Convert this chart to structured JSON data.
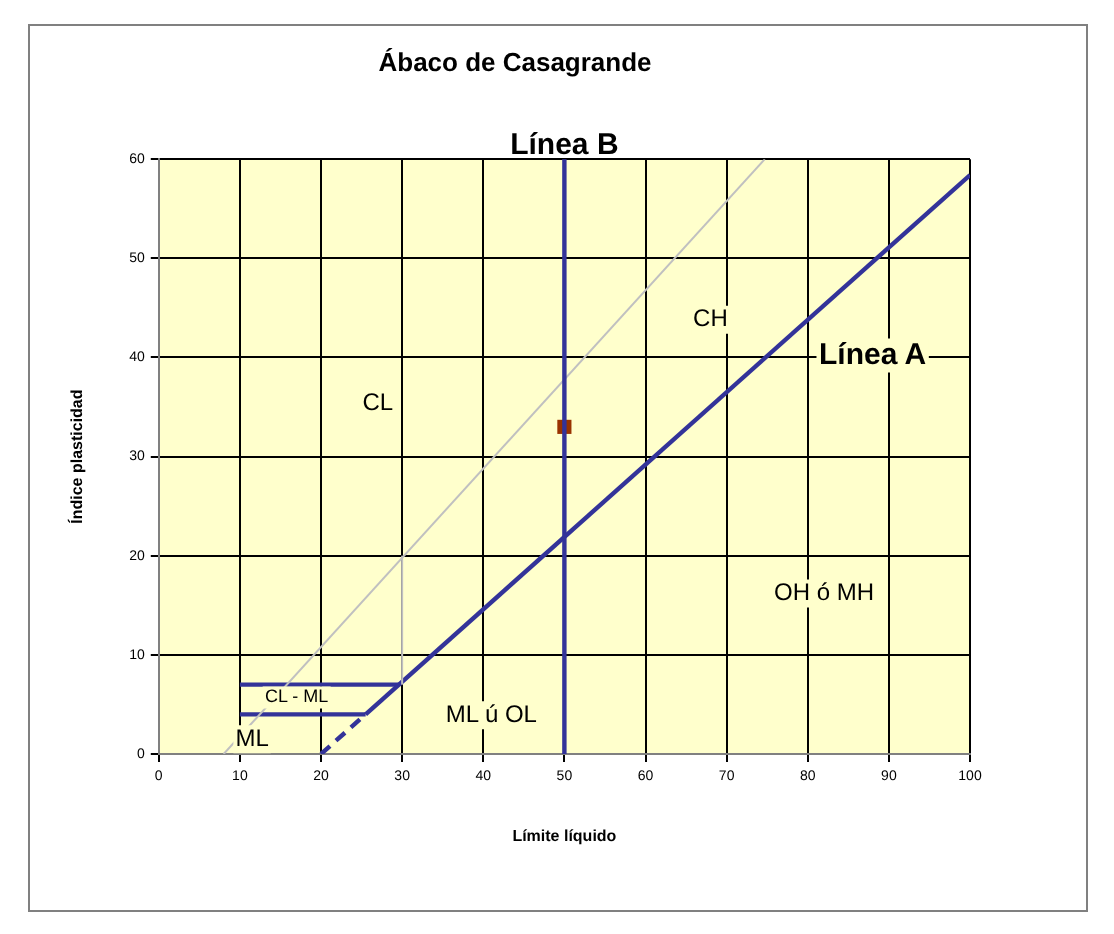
{
  "chart_data": {
    "type": "line",
    "title": "Ábaco de Casagrande",
    "xlabel": "Límite líquido",
    "ylabel": "Índice plasticidad",
    "xlim": [
      0,
      100
    ],
    "xticks": [
      0,
      10,
      20,
      30,
      40,
      50,
      60,
      70,
      80,
      90,
      100
    ],
    "ylim": [
      0,
      60
    ],
    "yticks": [
      0,
      10,
      20,
      30,
      40,
      50,
      60
    ],
    "grid": true,
    "legend": false,
    "series": [
      {
        "type": "line",
        "x": [
          8,
          74.7
        ],
        "values": [
          0,
          60
        ],
        "color": "#c0c0c0",
        "line_style": "solid"
      },
      {
        "type": "line",
        "x": [
          30,
          30
        ],
        "values": [
          7,
          20
        ],
        "color": "#c0c0c0",
        "line_style": "solid"
      },
      {
        "type": "line",
        "x": [
          25.5,
          100
        ],
        "values": [
          4,
          58.4
        ],
        "color": "#333399",
        "line_style": "solid"
      },
      {
        "type": "line",
        "x": [
          20,
          25.5
        ],
        "values": [
          0,
          4
        ],
        "color": "#333399",
        "line_style": "dashed"
      },
      {
        "type": "line",
        "x": [
          10,
          29.6
        ],
        "values": [
          7,
          7
        ],
        "color": "#333399",
        "line_style": "solid"
      },
      {
        "type": "line",
        "x": [
          10,
          25.5
        ],
        "values": [
          4,
          4
        ],
        "color": "#333399",
        "line_style": "solid"
      },
      {
        "type": "scatter",
        "x": [
          50
        ],
        "values": [
          33
        ],
        "color": "#993300",
        "marker": "square"
      }
    ],
    "ref_lines": [
      {
        "axis": "x",
        "value": 50,
        "label": "Línea B",
        "color": "#333399"
      }
    ],
    "annotations": [
      "CL",
      "CH",
      "Línea A",
      "OH ó MH",
      "ML ú OL",
      "CL - ML",
      "ML"
    ]
  }
}
